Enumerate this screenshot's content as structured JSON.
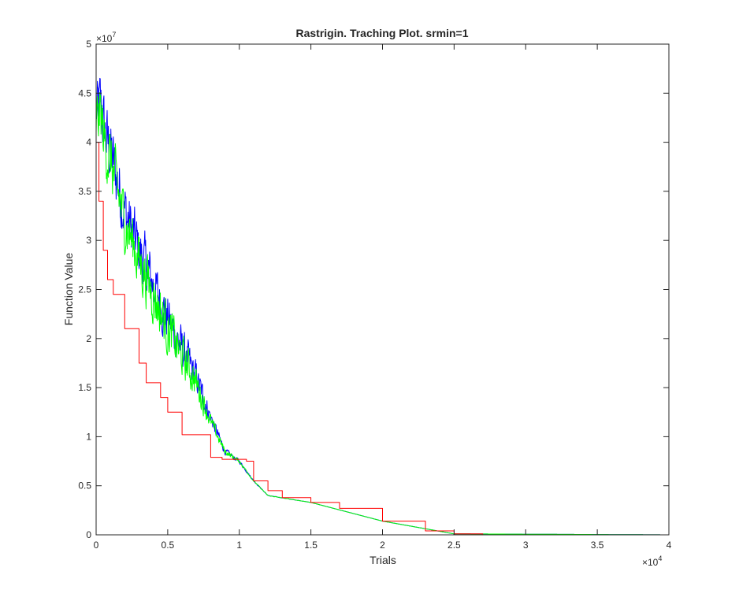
{
  "chart_data": {
    "type": "line",
    "title": "Rastrigin. Traching Plot. srmin=1",
    "xlabel": "Trials",
    "ylabel": "Function Value",
    "x_exponent_label": "×10",
    "x_exponent": "4",
    "y_exponent_label": "×10",
    "y_exponent": "7",
    "xlim": [
      0,
      4
    ],
    "ylim": [
      0,
      5
    ],
    "xticks": [
      "0",
      "0.5",
      "1",
      "1.5",
      "2",
      "2.5",
      "3",
      "3.5",
      "4"
    ],
    "yticks": [
      "0",
      "0.5",
      "1",
      "1.5",
      "2",
      "2.5",
      "3",
      "3.5",
      "4",
      "4.5",
      "5"
    ],
    "grid": false,
    "legend": "none",
    "series": [
      {
        "color": "#0000ff",
        "style": "noisy",
        "x": [
          0,
          0.03,
          0.06,
          0.1,
          0.2,
          0.3,
          0.5,
          0.7,
          0.8,
          0.9,
          1.0,
          1.1,
          1.2,
          1.5,
          2.0,
          2.5,
          4.0
        ],
        "y": [
          4.3,
          4.4,
          4.1,
          3.9,
          3.3,
          2.9,
          2.2,
          1.6,
          1.2,
          0.85,
          0.75,
          0.55,
          0.4,
          0.33,
          0.14,
          0.01,
          0.0
        ],
        "noise_amplitude": [
          0.5,
          0.5,
          0.55,
          0.55,
          0.5,
          0.45,
          0.4,
          0.25,
          0.12,
          0.05,
          0.03,
          0.01,
          0.005,
          0,
          0,
          0,
          0
        ]
      },
      {
        "color": "#00ff00",
        "style": "noisy",
        "x": [
          0,
          0.03,
          0.06,
          0.1,
          0.2,
          0.3,
          0.5,
          0.7,
          0.8,
          0.9,
          1.0,
          1.1,
          1.2,
          1.5,
          2.0,
          2.5,
          4.0
        ],
        "y": [
          4.2,
          4.3,
          4.0,
          3.8,
          3.2,
          2.8,
          2.1,
          1.55,
          1.15,
          0.85,
          0.75,
          0.55,
          0.4,
          0.33,
          0.14,
          0.01,
          0.0
        ],
        "noise_amplitude": [
          0.45,
          0.5,
          0.5,
          0.5,
          0.45,
          0.45,
          0.4,
          0.25,
          0.12,
          0.05,
          0.03,
          0.01,
          0.005,
          0,
          0,
          0,
          0
        ]
      },
      {
        "color": "#ff0000",
        "style": "step",
        "x": [
          0,
          0.02,
          0.05,
          0.08,
          0.12,
          0.2,
          0.3,
          0.35,
          0.45,
          0.5,
          0.6,
          0.8,
          0.88,
          1.05,
          1.1,
          1.2,
          1.3,
          1.5,
          1.7,
          2.0,
          2.3,
          2.5,
          2.7,
          4.0
        ],
        "y": [
          4.0,
          3.4,
          2.9,
          2.6,
          2.45,
          2.1,
          1.75,
          1.55,
          1.4,
          1.25,
          1.02,
          0.79,
          0.77,
          0.75,
          0.55,
          0.45,
          0.38,
          0.33,
          0.27,
          0.14,
          0.04,
          0.01,
          0.0,
          0.0
        ]
      }
    ]
  }
}
